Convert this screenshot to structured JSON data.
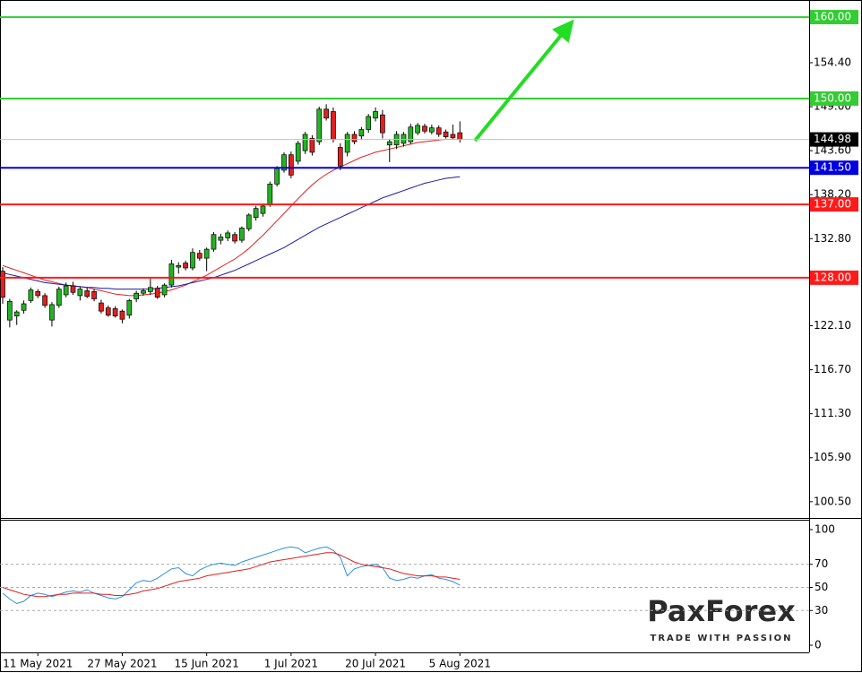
{
  "chart_data": [
    {
      "type": "candlestick",
      "categories": [
        null,
        null,
        null,
        null,
        null,
        "11 May 2021",
        null,
        null,
        null,
        null,
        null,
        null,
        null,
        null,
        null,
        null,
        null,
        "27 May 2021",
        null,
        null,
        null,
        null,
        null,
        null,
        null,
        null,
        null,
        null,
        null,
        "15 Jun 2021",
        null,
        null,
        null,
        null,
        null,
        null,
        null,
        null,
        null,
        null,
        null,
        "1 Jul 2021",
        null,
        null,
        null,
        null,
        null,
        null,
        null,
        null,
        null,
        null,
        null,
        "20 Jul 2021",
        null,
        null,
        null,
        null,
        null,
        null,
        null,
        null,
        null,
        null,
        null,
        "5 Aug 2021"
      ],
      "open": [
        128.8,
        122.8,
        123.3,
        124.0,
        125.2,
        126.3,
        125.8,
        122.8,
        124.6,
        125.9,
        127.0,
        125.8,
        126.4,
        126.3,
        124.9,
        124.3,
        124.2,
        123.9,
        123.4,
        125.4,
        126.1,
        126.3,
        126.7,
        125.9,
        127.1,
        129.3,
        129.8,
        129.2,
        131.0,
        130.4,
        131.5,
        132.6,
        132.9,
        133.3,
        132.6,
        134.0,
        135.4,
        135.9,
        137.0,
        139.5,
        141.2,
        143.1,
        142.3,
        143.6,
        145.1,
        144.7,
        148.7,
        148.4,
        144.0,
        143.4,
        145.6,
        145.4,
        146.2,
        147.6,
        148.0,
        144.3,
        144.3,
        144.5,
        144.7,
        145.8,
        146.6,
        145.9,
        146.4,
        145.9,
        145.6,
        145.8
      ],
      "high": [
        129.3,
        125.4,
        124.0,
        125.2,
        126.8,
        126.6,
        126.1,
        125.0,
        126.9,
        127.4,
        127.5,
        126.9,
        126.8,
        126.6,
        125.3,
        124.6,
        124.5,
        124.1,
        125.4,
        126.4,
        126.7,
        127.9,
        127.0,
        127.3,
        130.2,
        129.9,
        130.1,
        131.6,
        131.4,
        131.7,
        133.6,
        133.4,
        133.8,
        133.6,
        134.3,
        135.9,
        136.8,
        137.0,
        139.8,
        141.7,
        143.4,
        143.5,
        144.8,
        145.9,
        145.5,
        149.0,
        149.3,
        148.9,
        144.5,
        145.9,
        146.0,
        146.5,
        148.1,
        148.9,
        148.6,
        145.0,
        146.0,
        145.9,
        146.9,
        147.0,
        146.9,
        146.8,
        146.7,
        146.2,
        146.8,
        147.2
      ],
      "low": [
        124.8,
        121.9,
        122.2,
        123.6,
        124.9,
        125.5,
        124.3,
        122.0,
        124.3,
        125.6,
        125.9,
        125.2,
        125.5,
        125.1,
        123.6,
        123.2,
        123.1,
        122.4,
        123.0,
        125.0,
        125.8,
        125.9,
        125.4,
        125.6,
        126.8,
        128.5,
        128.9,
        128.9,
        130.1,
        128.8,
        131.2,
        132.1,
        132.5,
        132.2,
        132.3,
        133.7,
        135.0,
        135.5,
        136.7,
        139.2,
        140.9,
        140.2,
        141.9,
        143.2,
        143.0,
        144.3,
        147.3,
        144.6,
        141.2,
        142.9,
        144.4,
        145.0,
        145.8,
        147.2,
        145.1,
        142.2,
        143.8,
        144.1,
        144.4,
        145.5,
        145.7,
        145.6,
        145.3,
        145.1,
        145.0,
        144.6
      ],
      "close": [
        125.6,
        125.1,
        123.8,
        124.8,
        126.5,
        125.8,
        124.6,
        124.7,
        126.6,
        127.0,
        126.2,
        126.6,
        125.7,
        125.4,
        123.9,
        123.4,
        123.3,
        122.9,
        125.2,
        126.1,
        126.4,
        126.8,
        125.6,
        127.1,
        129.7,
        129.5,
        129.2,
        131.1,
        130.4,
        131.5,
        133.3,
        133.0,
        133.5,
        132.5,
        134.1,
        135.7,
        136.5,
        136.8,
        139.5,
        141.4,
        143.1,
        140.6,
        144.5,
        145.6,
        143.4,
        148.7,
        147.6,
        145.0,
        141.7,
        145.6,
        144.7,
        146.2,
        147.8,
        148.4,
        145.8,
        144.7,
        145.6,
        145.6,
        146.5,
        146.7,
        146.0,
        146.4,
        145.6,
        145.3,
        145.2,
        144.98
      ],
      "up_color": "#22b422",
      "down_color": "#e02020",
      "series": [
        {
          "color": "#e02020",
          "values": [
            129.5,
            129.2,
            128.9,
            128.6,
            128.3,
            128.0,
            127.7,
            127.5,
            127.3,
            127.1,
            127.0,
            126.9,
            126.8,
            126.6,
            126.4,
            126.2,
            126.0,
            125.9,
            125.8,
            125.8,
            125.9,
            126.0,
            126.1,
            126.3,
            126.5,
            126.8,
            127.1,
            127.5,
            127.9,
            128.3,
            128.8,
            129.3,
            129.8,
            130.3,
            130.9,
            131.6,
            132.4,
            133.2,
            134.1,
            135.0,
            135.9,
            136.8,
            137.7,
            138.6,
            139.4,
            140.1,
            140.7,
            141.2,
            141.6,
            142.0,
            142.4,
            142.8,
            143.1,
            143.4,
            143.6,
            143.8,
            144.0,
            144.2,
            144.4,
            144.6,
            144.7,
            144.8,
            144.9,
            145.0,
            145.0,
            145.0
          ]
        },
        {
          "color": "#1a1aa8",
          "values": [
            128.6,
            128.4,
            128.2,
            128.0,
            127.8,
            127.6,
            127.4,
            127.3,
            127.2,
            127.1,
            127.0,
            126.9,
            126.8,
            126.8,
            126.7,
            126.7,
            126.6,
            126.6,
            126.6,
            126.6,
            126.6,
            126.6,
            126.7,
            126.8,
            126.9,
            127.0,
            127.2,
            127.4,
            127.6,
            127.8,
            128.0,
            128.3,
            128.6,
            128.9,
            129.3,
            129.7,
            130.1,
            130.5,
            130.9,
            131.3,
            131.7,
            132.2,
            132.7,
            133.2,
            133.7,
            134.2,
            134.6,
            135.0,
            135.4,
            135.8,
            136.2,
            136.6,
            137.0,
            137.4,
            137.8,
            138.1,
            138.4,
            138.7,
            139.0,
            139.3,
            139.6,
            139.8,
            140.0,
            140.2,
            140.3,
            140.4
          ]
        }
      ],
      "levels": [
        {
          "value": 160,
          "label": "160.00",
          "color": "#33cc33"
        },
        {
          "value": 150,
          "label": "150.00",
          "color": "#33cc33"
        },
        {
          "value": 141.5,
          "label": "141.50",
          "color": "#0000e0"
        },
        {
          "value": 137,
          "label": "137.00",
          "color": "#ff1a1a"
        },
        {
          "value": 128,
          "label": "128.00",
          "color": "#ff1a1a"
        }
      ],
      "last_price": {
        "value": 144.98,
        "label": "144.98",
        "color": "#c0c0c0"
      },
      "ylim": [
        98.5,
        162.1
      ],
      "yticks": [
        {
          "value": 100.5,
          "label": "100.50"
        },
        {
          "value": 105.9,
          "label": "105.90"
        },
        {
          "value": 111.3,
          "label": "111.30"
        },
        {
          "value": 116.7,
          "label": "116.70"
        },
        {
          "value": 122.1,
          "label": "122.10"
        },
        {
          "value": 132.8,
          "label": "132.80"
        },
        {
          "value": 138.2,
          "label": "138.20"
        },
        {
          "value": 143.6,
          "label": "143.60"
        },
        {
          "value": 149,
          "label": "149.00"
        },
        {
          "value": 154.4,
          "label": "154.40"
        }
      ]
    },
    {
      "type": "line",
      "series": [
        {
          "color": "#2a8fe0",
          "values": [
            45,
            40,
            36,
            38,
            43,
            45,
            44,
            42,
            44,
            46,
            47,
            46,
            48,
            45,
            43,
            41,
            40,
            42,
            48,
            54,
            56,
            55,
            58,
            62,
            66,
            67,
            62,
            60,
            65,
            68,
            70,
            71,
            70,
            69,
            72,
            74,
            76,
            78,
            80,
            82,
            84,
            85,
            84,
            80,
            82,
            84,
            85,
            82,
            76,
            60,
            66,
            68,
            69,
            70,
            67,
            58,
            56,
            57,
            59,
            58,
            60,
            61,
            58,
            57,
            55,
            52
          ]
        },
        {
          "color": "#e02020",
          "values": [
            50,
            48,
            46,
            44,
            43,
            42,
            42,
            43,
            44,
            44,
            45,
            45,
            45,
            45,
            44,
            44,
            43,
            43,
            44,
            45,
            47,
            48,
            49,
            51,
            53,
            55,
            56,
            57,
            58,
            60,
            61,
            62,
            63,
            64,
            65,
            66,
            68,
            70,
            72,
            73,
            74,
            75,
            76,
            77,
            78,
            79,
            80,
            80,
            78,
            75,
            72,
            70,
            69,
            68,
            67,
            66,
            64,
            62,
            61,
            60,
            60,
            60,
            59,
            59,
            58,
            57
          ]
        }
      ],
      "ylim": [
        -6.2,
        108.5
      ],
      "yticks": [
        0,
        30,
        50,
        70,
        100
      ]
    }
  ],
  "watermark": {
    "brand": "PaxForex",
    "tagline": "TRADE WITH PASSION"
  }
}
